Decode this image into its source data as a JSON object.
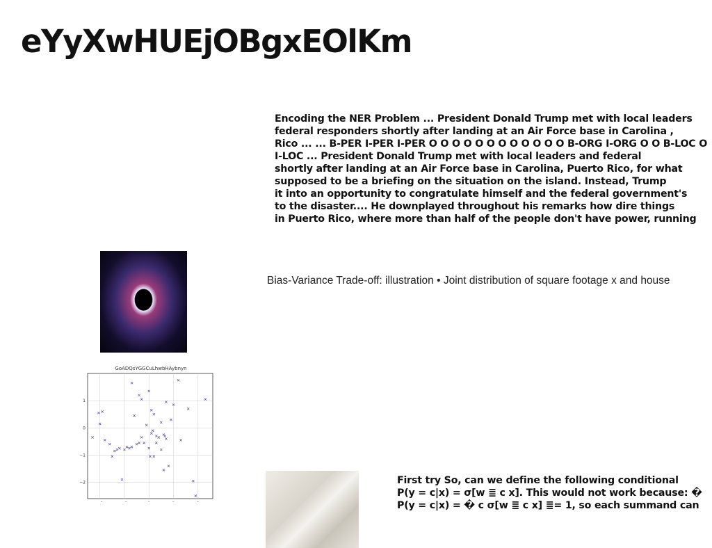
{
  "page": {
    "title": "eYyXwHUEjOBgxEOlKm",
    "paragraph1_lines": [
      "Encoding the NER Problem ... President Donald Trump met with local leaders",
      "federal responders shortly after landing at an Air Force base in Carolina ,",
      "Rico ... ... B-PER I-PER I-PER O O O O O O O O O O O O B-ORG I-ORG O O B-LOC O",
      "I-LOC ... President Donald Trump met with local leaders and federal",
      "shortly after landing at an Air Force base in Carolina, Puerto Rico, for what",
      "supposed to be a briefing on the situation on the island. Instead, Trump",
      "it into an opportunity to congratulate himself and the federal government's",
      "to the disaster.... He downplayed throughout his remarks how dire things",
      "in Puerto Rico, where more than half of the people don't have power, running"
    ],
    "caption": "Bias-Variance Trade-off: illustration • Joint distribution of square footage x and house",
    "paragraph2_lines": [
      "First try So, can we define the following conditional",
      "P(y = c|x) = σ[w ≣ c x]. This would not work because: �",
      "P(y = c|x) = � c σ[w ≣ c x] ≣= 1, so each summand can"
    ]
  },
  "images": {
    "image1": "black-hole-image",
    "image2": "building-image"
  },
  "chart_data": {
    "type": "scatter",
    "title": "GoADQsYGGCuLhwbHAybnyn",
    "marker": "x",
    "color": "#3b3b8f",
    "grid": true,
    "xlim": [
      -2.5,
      2.6
    ],
    "ylim": [
      -2.6,
      2.0
    ],
    "xticks": [
      -2,
      -1,
      0,
      1,
      2
    ],
    "yticks": [
      1,
      0,
      -1,
      -2
    ],
    "tick_labels_x": [
      "−2",
      "−1",
      "0",
      "1",
      "2"
    ],
    "tick_labels_y": [
      "1",
      "0",
      "−1",
      "−2"
    ],
    "x": [
      -2.3,
      -2.0,
      -1.9,
      -1.8,
      -1.6,
      -1.5,
      -1.4,
      -1.3,
      -1.1,
      -1.0,
      -0.9,
      -0.8,
      -0.7,
      -0.6,
      -0.5,
      -0.4,
      -0.4,
      -0.3,
      -0.3,
      -0.2,
      -0.1,
      0.0,
      0.0,
      0.05,
      0.1,
      0.1,
      0.2,
      0.2,
      0.3,
      0.3,
      0.4,
      0.5,
      0.5,
      0.6,
      0.6,
      0.7,
      0.7,
      0.8,
      0.9,
      1.0,
      1.2,
      1.3,
      1.6,
      1.8,
      1.9,
      2.3,
      -0.7,
      -1.2,
      -2.05,
      0.65,
      0.15
    ],
    "y": [
      -0.35,
      0.15,
      0.6,
      -0.45,
      -0.6,
      -1.05,
      -0.85,
      -0.8,
      -1.9,
      -0.8,
      -0.7,
      -0.75,
      -0.7,
      0.45,
      -0.6,
      -0.55,
      1.2,
      1.05,
      -0.35,
      -0.55,
      0.1,
      1.35,
      -0.75,
      -1.05,
      0.65,
      -0.2,
      0.5,
      -1.05,
      -0.3,
      -0.55,
      -0.35,
      0.2,
      -0.8,
      -0.25,
      -1.55,
      -0.4,
      0.95,
      -1.4,
      0.3,
      0.85,
      1.75,
      -0.45,
      0.7,
      -1.95,
      -2.5,
      1.05,
      1.65,
      -0.75,
      0.55,
      -0.3,
      -0.1
    ]
  }
}
